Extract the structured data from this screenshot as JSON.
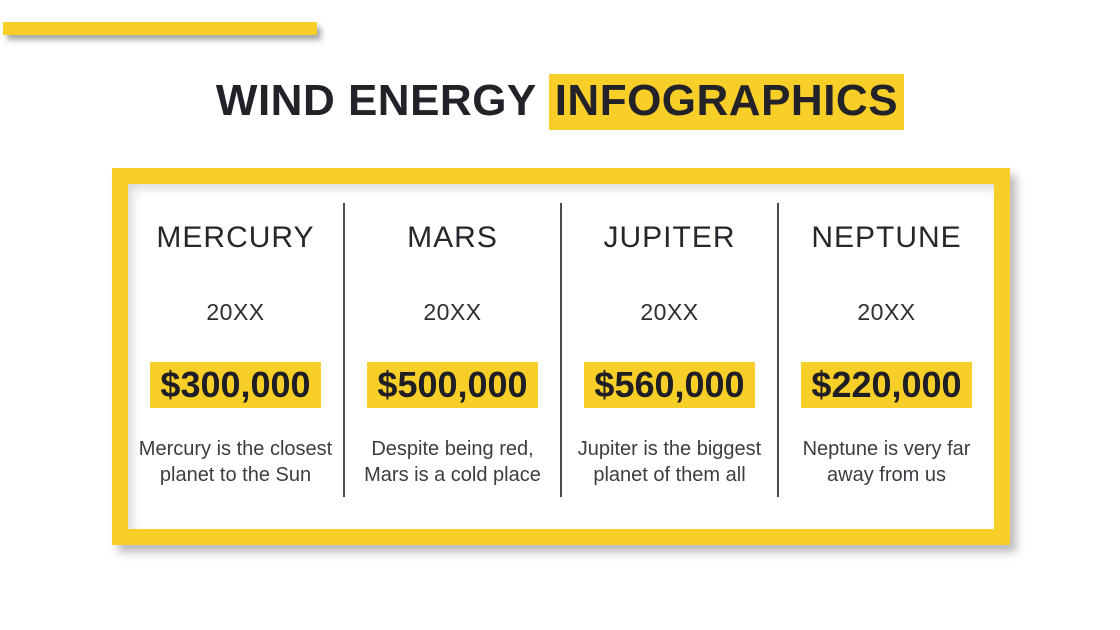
{
  "accent_color": "#F8CE29",
  "divider_color": "#4a4a50",
  "title": {
    "plain": "WIND ENERGY ",
    "highlight": "INFOGRAPHICS"
  },
  "columns": [
    {
      "name": "MERCURY",
      "year": "20XX",
      "amount": "$300,000",
      "description": "Mercury is the closest\nplanet to the Sun"
    },
    {
      "name": "MARS",
      "year": "20XX",
      "amount": "$500,000",
      "description": "Despite being red,\nMars is a cold place"
    },
    {
      "name": "JUPITER",
      "year": "20XX",
      "amount": "$560,000",
      "description": "Jupiter is the biggest\nplanet of them all"
    },
    {
      "name": "NEPTUNE",
      "year": "20XX",
      "amount": "$220,000",
      "description": "Neptune is very far\naway from us"
    }
  ]
}
